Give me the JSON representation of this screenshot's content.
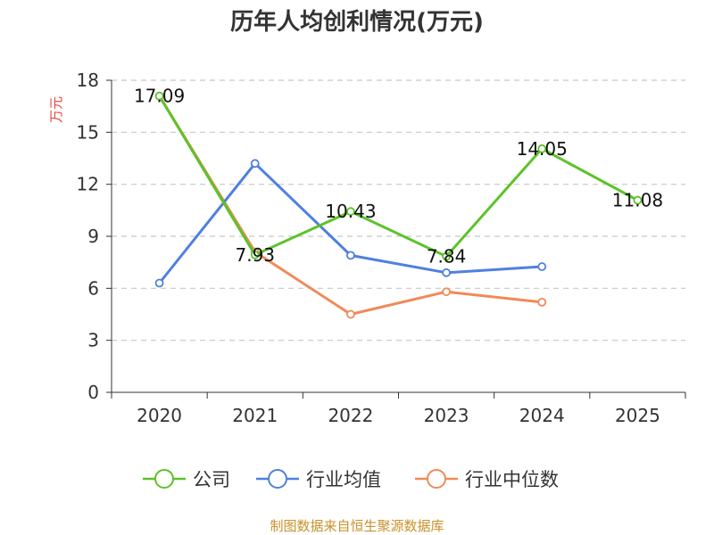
{
  "chart_data": {
    "type": "line",
    "title": "历年人均创利情况(万元)",
    "ylabel": "万元",
    "xlabel": "",
    "categories": [
      "2020",
      "2021",
      "2022",
      "2023",
      "2024",
      "2025"
    ],
    "ylim": [
      0,
      18
    ],
    "yticks": [
      0,
      3,
      6,
      9,
      12,
      15,
      18
    ],
    "grid": "horizontal-dashed",
    "legend_position": "bottom",
    "series": [
      {
        "name": "公司",
        "color": "#5dc22a",
        "values": [
          17.09,
          7.93,
          10.43,
          7.84,
          14.05,
          11.08
        ],
        "labels": [
          "17.09",
          "7.93",
          "10.43",
          "7.84",
          "14.05",
          "11.08"
        ]
      },
      {
        "name": "行业均值",
        "color": "#4f80e0",
        "values": [
          6.3,
          13.2,
          7.9,
          6.9,
          7.25,
          null
        ]
      },
      {
        "name": "行业中位数",
        "color": "#f08a58",
        "values": [
          17.09,
          8.1,
          4.5,
          5.8,
          5.2,
          null
        ]
      }
    ],
    "source": "制图数据来自恒生聚源数据库"
  }
}
